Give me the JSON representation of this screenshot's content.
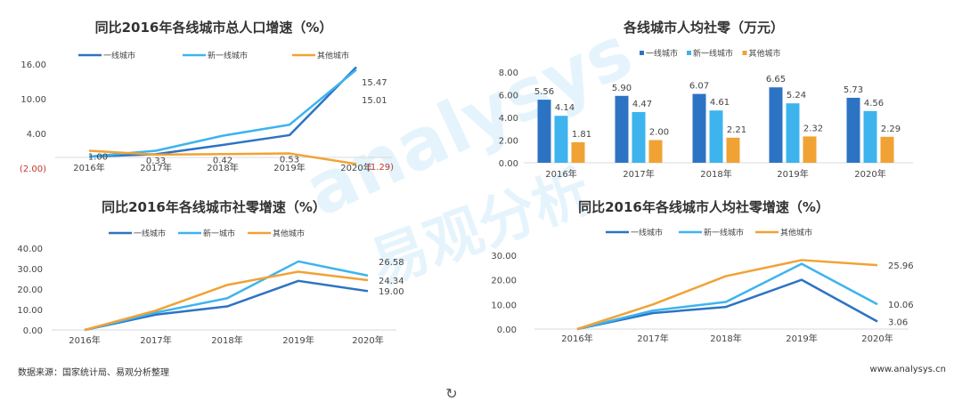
{
  "watermark": {
    "logo_text": "analysys",
    "logo_cn": "易观分析"
  },
  "footer": {
    "source": "数据来源：国家统计局、易观分析整理",
    "site": "www.analysys.cn"
  },
  "refresh_icon": "refresh-icon",
  "colors": {
    "first_tier": "#2d73c4",
    "new_first_tier": "#3db4ee",
    "other": "#f1a235",
    "negative_label": "#c0392b"
  },
  "chart_data": [
    {
      "type": "line",
      "title": "同比2016年各线城市总人口增速（%）",
      "categories": [
        "2016年",
        "2017年",
        "2018年",
        "2019年",
        "2020年"
      ],
      "yticks": [
        16,
        10,
        4,
        -2
      ],
      "ytick_labels": [
        "16.00",
        "10.00",
        "4.00",
        "(2.00)"
      ],
      "ylim": [
        -2,
        16
      ],
      "legend_position": "top",
      "series": [
        {
          "name": "一线城市",
          "values": [
            0,
            0.4,
            2.0,
            3.7,
            15.47
          ],
          "labels": [
            "",
            "",
            "",
            "",
            "15.47"
          ]
        },
        {
          "name": "新一线城市",
          "values": [
            0,
            1.0,
            3.6,
            5.5,
            15.01
          ],
          "labels": [
            "",
            "",
            "",
            "",
            "15.01"
          ]
        },
        {
          "name": "其他城市",
          "values": [
            1.0,
            0.33,
            0.42,
            0.53,
            -1.29
          ],
          "labels": [
            "1.00",
            "0.33",
            "0.42",
            "0.53",
            "(1.29)"
          ]
        }
      ]
    },
    {
      "type": "bar",
      "title": "各线城市人均社零（万元）",
      "categories": [
        "2016年",
        "2017年",
        "2018年",
        "2019年",
        "2020年"
      ],
      "yticks": [
        8,
        6,
        4,
        2,
        0
      ],
      "ytick_labels": [
        "8.00",
        "6.00",
        "4.00",
        "2.00",
        "0.00"
      ],
      "ylim": [
        0,
        8
      ],
      "legend_position": "top",
      "series": [
        {
          "name": "一线城市",
          "values": [
            5.56,
            5.9,
            6.07,
            6.65,
            5.73
          ],
          "labels": [
            "5.56",
            "5.90",
            "6.07",
            "6.65",
            "5.73"
          ]
        },
        {
          "name": "新一线城市",
          "values": [
            4.14,
            4.47,
            4.61,
            5.24,
            4.56
          ],
          "labels": [
            "4.14",
            "4.47",
            "4.61",
            "5.24",
            "4.56"
          ]
        },
        {
          "name": "其他城市",
          "values": [
            1.81,
            2.0,
            2.21,
            2.32,
            2.29
          ],
          "labels": [
            "1.81",
            "2.00",
            "2.21",
            "2.32",
            "2.29"
          ]
        }
      ]
    },
    {
      "type": "line",
      "title": "同比2016年各线城市社零增速（%）",
      "categories": [
        "2016年",
        "2017年",
        "2018年",
        "2019年",
        "2020年"
      ],
      "yticks": [
        40,
        30,
        20,
        10,
        0
      ],
      "ytick_labels": [
        "40.00",
        "30.00",
        "20.00",
        "10.00",
        "0.00"
      ],
      "ylim": [
        0,
        40
      ],
      "legend_position": "top",
      "series": [
        {
          "name": "一线城市",
          "values": [
            0,
            7.5,
            11.5,
            24,
            19.0
          ],
          "labels": [
            "",
            "",
            "",
            "",
            "19.00"
          ]
        },
        {
          "name": "新一城市",
          "values": [
            0,
            8.5,
            15.5,
            33.5,
            26.58
          ],
          "labels": [
            "",
            "",
            "",
            "",
            "26.58"
          ]
        },
        {
          "name": "其他城市",
          "values": [
            0,
            9.5,
            22,
            28.5,
            24.34
          ],
          "labels": [
            "",
            "",
            "",
            "",
            "24.34"
          ]
        }
      ]
    },
    {
      "type": "line",
      "title": "同比2016年各线城市人均社零增速（%）",
      "categories": [
        "2016年",
        "2017年",
        "2018年",
        "2019年",
        "2020年"
      ],
      "yticks": [
        30,
        20,
        10,
        0
      ],
      "ytick_labels": [
        "30.00",
        "20.00",
        "10.00",
        "0.00"
      ],
      "ylim": [
        0,
        30
      ],
      "legend_position": "top",
      "series": [
        {
          "name": "一线城市",
          "values": [
            0,
            6.5,
            9,
            20,
            3.06
          ],
          "labels": [
            "",
            "",
            "",
            "",
            "3.06"
          ]
        },
        {
          "name": "新一线城市",
          "values": [
            0,
            7.5,
            11,
            26.5,
            10.06
          ],
          "labels": [
            "",
            "",
            "",
            "",
            "10.06"
          ]
        },
        {
          "name": "其他城市",
          "values": [
            0,
            10,
            21.5,
            28,
            25.96
          ],
          "labels": [
            "",
            "",
            "",
            "",
            "25.96"
          ]
        }
      ]
    }
  ]
}
